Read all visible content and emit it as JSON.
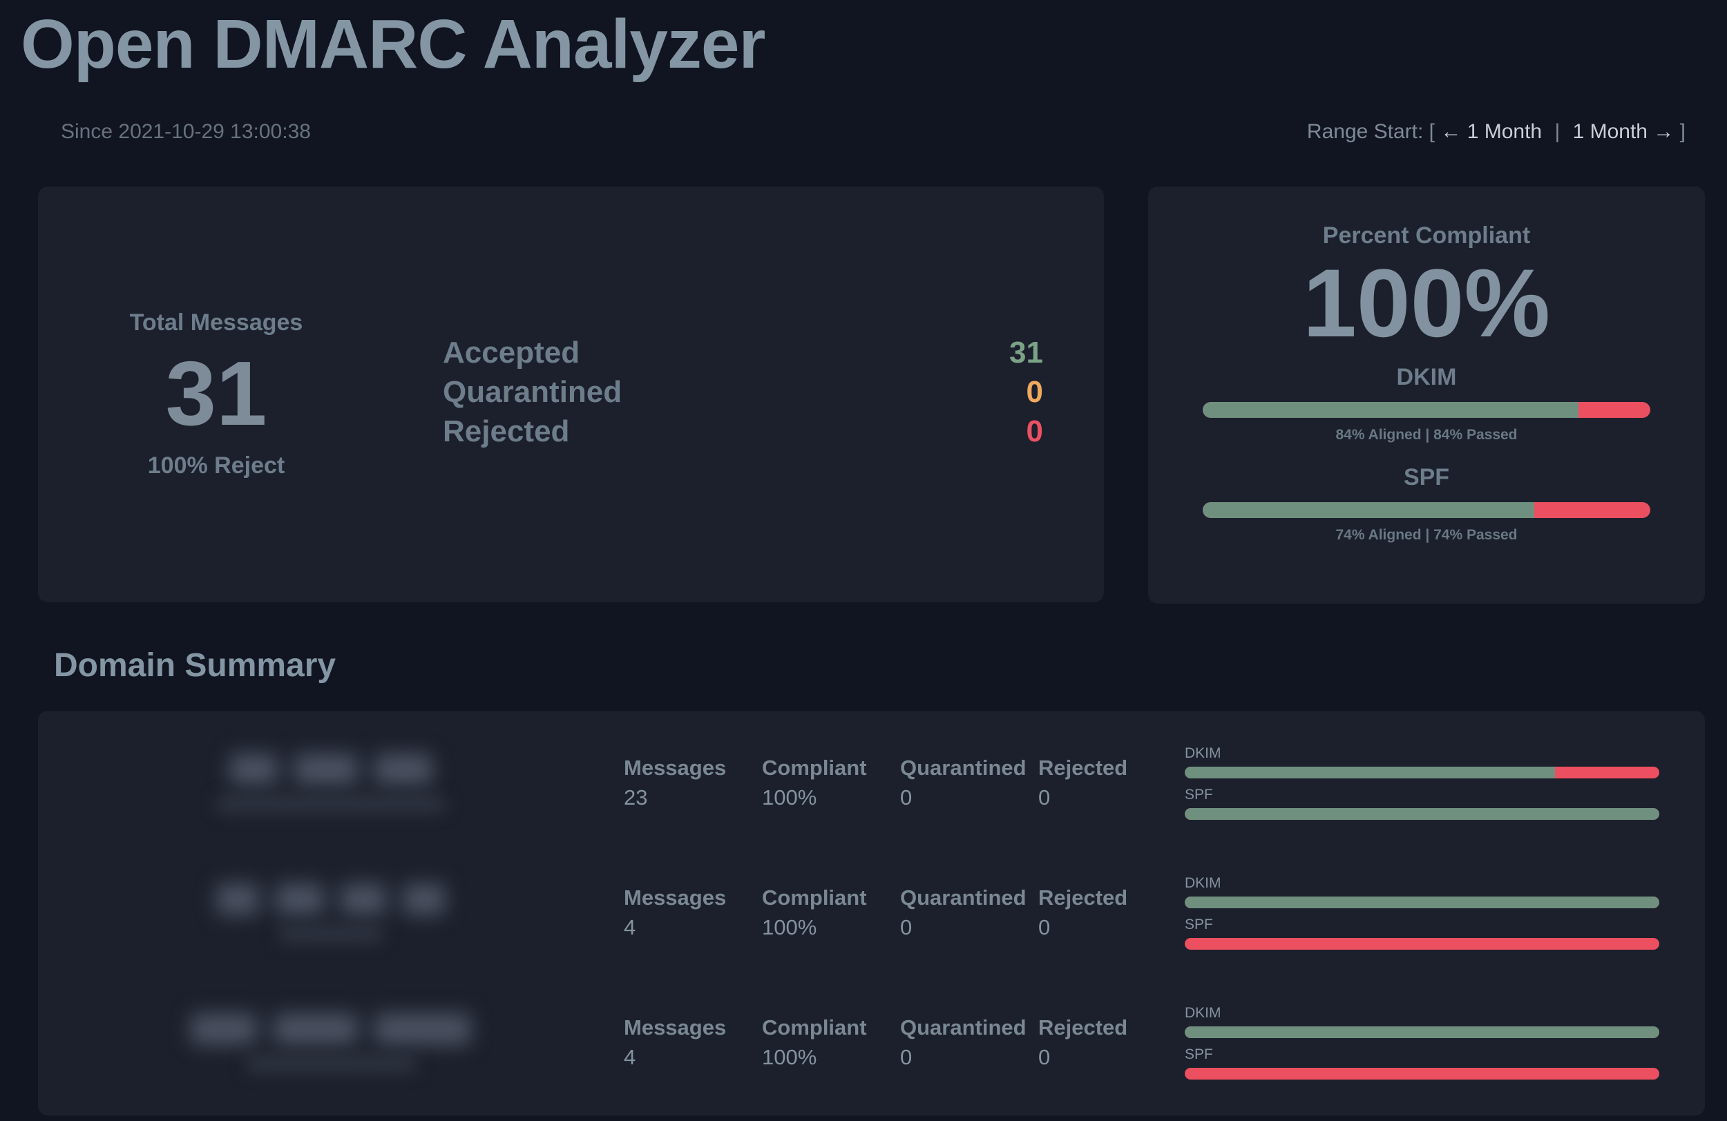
{
  "app": {
    "title": "Open DMARC Analyzer"
  },
  "header": {
    "since": "Since 2021-10-29 13:00:38",
    "range": {
      "prefix": "Range Start: [",
      "prev": "← 1 Month",
      "separator": "|",
      "next": "1 Month →",
      "suffix": "]"
    }
  },
  "overview": {
    "total": {
      "label": "Total Messages",
      "value": "31",
      "policy": "100% Reject"
    },
    "dispositions": [
      {
        "label": "Accepted",
        "value": "31",
        "color": "#7ba287"
      },
      {
        "label": "Quarantined",
        "value": "0",
        "color": "#efa95e"
      },
      {
        "label": "Rejected",
        "value": "0",
        "color": "#ec5063"
      }
    ]
  },
  "compliance": {
    "title": "Percent Compliant",
    "percent": "100%",
    "metrics": [
      {
        "label": "DKIM",
        "aligned_pct": 84,
        "caption": "84% Aligned | 84% Passed"
      },
      {
        "label": "SPF",
        "aligned_pct": 74,
        "caption": "74% Aligned | 74% Passed"
      }
    ]
  },
  "domain_summary": {
    "title": "Domain Summary",
    "columns": [
      "Messages",
      "Compliant",
      "Quarantined",
      "Rejected"
    ],
    "bar_labels": {
      "dkim": "DKIM",
      "spf": "SPF"
    },
    "rows": [
      {
        "domain": "redacted",
        "values": [
          "23",
          "100%",
          "0",
          "0"
        ],
        "dkim_pct": 78,
        "spf_pct": 100
      },
      {
        "domain": "redacted",
        "values": [
          "4",
          "100%",
          "0",
          "0"
        ],
        "dkim_pct": 100,
        "spf_pct": 0
      },
      {
        "domain": "redacted",
        "values": [
          "4",
          "100%",
          "0",
          "0"
        ],
        "dkim_pct": 100,
        "spf_pct": 0
      }
    ]
  },
  "colors": {
    "page_bg": "#111421",
    "card_bg": "#1b202c",
    "heading": "#8496a4",
    "muted_label": "#6e7d8b",
    "pass_green": "#70907f",
    "fail_red": "#ec4f5f",
    "accepted_green": "#7ba287",
    "quarantined_orange": "#efa95e",
    "rejected_red": "#ec5063"
  }
}
